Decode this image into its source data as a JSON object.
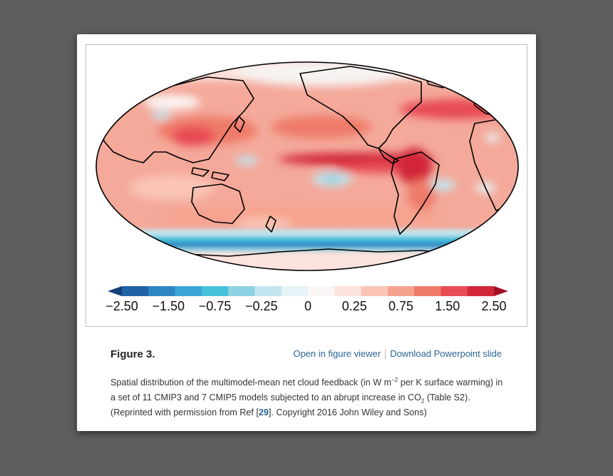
{
  "figure": {
    "label": "Figure 3.",
    "links": {
      "open_viewer": "Open in figure viewer",
      "download_slide": "Download Powerpoint slide"
    },
    "caption": {
      "part1": "Spatial distribution of the multimodel-mean net cloud feedback (in W m",
      "sup1": "−2",
      "part2": " per K surface warming) in a set of 11 CMIP3 and 7 CMIP5 models subjected to an abrupt increase in CO",
      "sub1": "2",
      "part3": " (Table S2). (Reprinted with permission from Ref [",
      "ref": "29",
      "part4": "]. Copyright 2016 John Wiley and Sons)"
    }
  },
  "colorbar": {
    "tick_labels": [
      "−2.50",
      "−1.50",
      "−0.75",
      "−0.25",
      "0",
      "0.25",
      "0.75",
      "1.50",
      "2.50"
    ],
    "under_color": "#153e75",
    "over_color": "#a50f29",
    "colors": [
      "#1f63a4",
      "#2e86c1",
      "#3aa6d5",
      "#47c2dc",
      "#8ed2e3",
      "#c2e4ee",
      "#e6f3f7",
      "#fbf7f6",
      "#fde3dd",
      "#fac5b6",
      "#f6a38e",
      "#ef7a69",
      "#e84b54",
      "#d22739"
    ]
  },
  "map": {
    "ocean_base_color": "#f4a99a",
    "outline_color": "#000000"
  }
}
